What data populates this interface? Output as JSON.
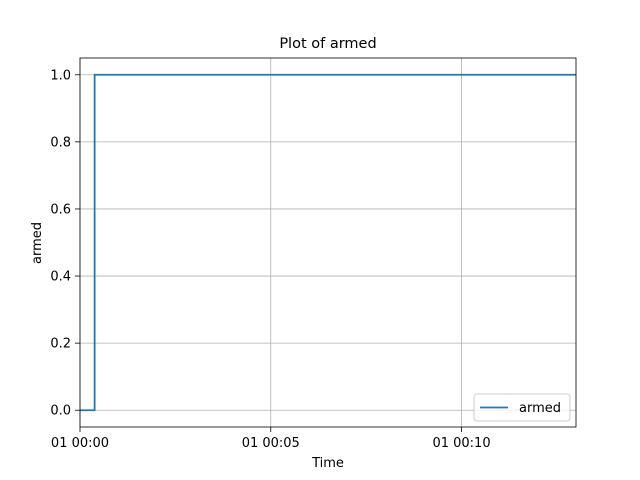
{
  "chart_data": {
    "type": "line",
    "title": "Plot of armed",
    "xlabel": "Time",
    "ylabel": "armed",
    "x_ticks": [
      "01 00:00",
      "01 00:05",
      "01 00:10"
    ],
    "y_ticks": [
      "0.0",
      "0.2",
      "0.4",
      "0.6",
      "0.8",
      "1.0"
    ],
    "xlim": [
      "01 00:00",
      "01 00:13"
    ],
    "ylim": [
      -0.05,
      1.05
    ],
    "grid": true,
    "legend_position": "lower-right",
    "series": [
      {
        "name": "armed",
        "color": "#1f77b4",
        "drawstyle": "steps",
        "x": [
          "01 00:00",
          "01 00:00:23",
          "01 00:13"
        ],
        "y": [
          0,
          1,
          1
        ]
      }
    ]
  }
}
